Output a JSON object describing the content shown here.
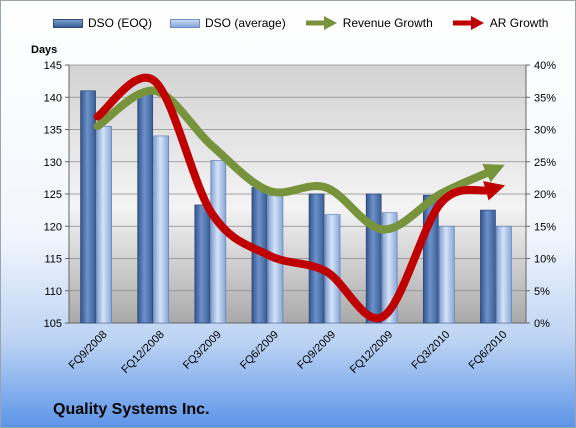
{
  "chart_data": {
    "type": "bar",
    "title": "",
    "company": "Quality Systems Inc.",
    "categories": [
      "FQ9/2008",
      "FQ12/2008",
      "FQ3/2009",
      "FQ6/2009",
      "FQ9/2009",
      "FQ12/2009",
      "FQ3/2010",
      "FQ6/2010"
    ],
    "ylabel": "Days",
    "ylim": [
      105,
      145
    ],
    "yticks": [
      "105",
      "110",
      "115",
      "120",
      "125",
      "130",
      "135",
      "140",
      "145"
    ],
    "y2lim": [
      0,
      40
    ],
    "y2ticks": [
      "0%",
      "5%",
      "10%",
      "15%",
      "20%",
      "25%",
      "30%",
      "35%",
      "40%"
    ],
    "legend_position": "top",
    "series": [
      {
        "name": "DSO (EOQ)",
        "type": "bar",
        "axis": "left",
        "color": "#4a6ea9",
        "values": [
          141,
          140.5,
          123.3,
          126,
          125,
          125,
          124.8,
          122.5
        ]
      },
      {
        "name": "DSO (average)",
        "type": "bar",
        "axis": "left",
        "color": "#9ab7e2",
        "values": [
          135.5,
          134,
          130.2,
          124.8,
          121.8,
          122.1,
          120,
          120
        ]
      },
      {
        "name": "Revenue Growth",
        "type": "line",
        "axis": "right",
        "color": "#77933c",
        "values": [
          30.5,
          36,
          27.5,
          20.5,
          21,
          14.5,
          20,
          24
        ]
      },
      {
        "name": "AR Growth",
        "type": "line",
        "axis": "right",
        "color": "#c00000",
        "values": [
          32,
          37.5,
          17,
          10.5,
          8,
          1,
          18.5,
          21
        ]
      }
    ]
  }
}
